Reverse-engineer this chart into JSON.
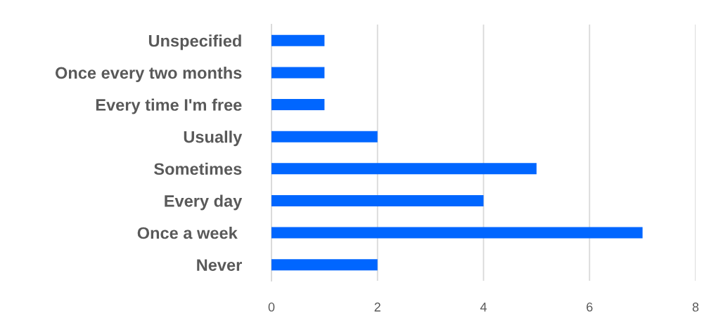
{
  "chart_data": {
    "type": "bar",
    "orientation": "horizontal",
    "categories": [
      "Unspecified",
      "Once every two months",
      "Every time I'm free",
      "Usually",
      "Sometimes",
      "Every day",
      "Once a week ",
      "Never"
    ],
    "values": [
      1,
      1,
      1,
      2,
      5,
      4,
      7,
      2
    ],
    "color": "#0066ff",
    "xlim": [
      0,
      8
    ],
    "xticks": [
      0,
      2,
      4,
      6,
      8
    ],
    "grid": "x",
    "legend": false
  }
}
